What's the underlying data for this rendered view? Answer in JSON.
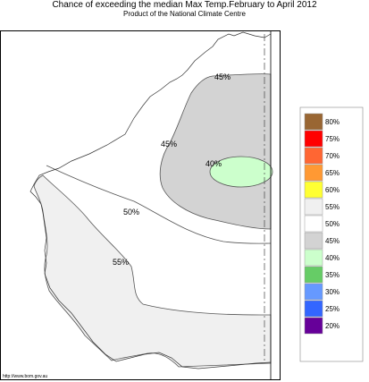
{
  "header": {
    "title": "Chance of exceeding the median Max Temp.February to April 2012",
    "subtitle": "Product of the National Climate Centre"
  },
  "map": {
    "contour_labels": [
      "45%",
      "45%",
      "40%",
      "50%",
      "55%"
    ],
    "colors": {
      "high_fill": "#f0f0f0",
      "low_fill": "#d3d3d3",
      "lowest_fill": "#ccffcc",
      "contour_line": "#555555"
    }
  },
  "legend": {
    "items": [
      {
        "label": "80%",
        "color": "#996633"
      },
      {
        "label": "75%",
        "color": "#ff0000"
      },
      {
        "label": "70%",
        "color": "#ff6633"
      },
      {
        "label": "65%",
        "color": "#ff9933"
      },
      {
        "label": "60%",
        "color": "#ffff33"
      },
      {
        "label": "55%",
        "color": "#f0f0f0"
      },
      {
        "label": "50%",
        "color": "#ffffff"
      },
      {
        "label": "45%",
        "color": "#d3d3d3"
      },
      {
        "label": "40%",
        "color": "#ccffcc"
      },
      {
        "label": "35%",
        "color": "#66cc66"
      },
      {
        "label": "30%",
        "color": "#6699ff"
      },
      {
        "label": "25%",
        "color": "#3366ff"
      },
      {
        "label": "20%",
        "color": "#660099"
      }
    ]
  },
  "footer": {
    "credit": "http://www.bom.gov.au"
  }
}
